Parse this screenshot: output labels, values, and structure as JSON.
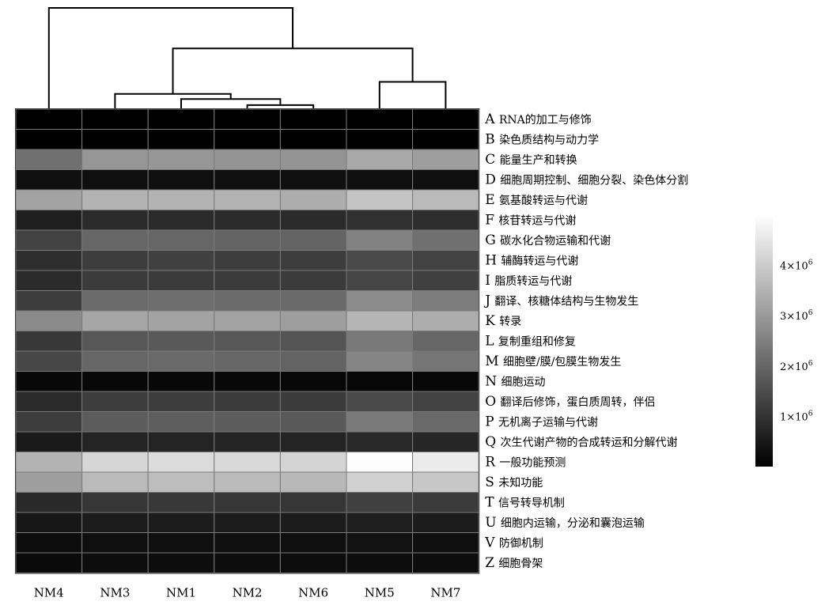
{
  "chart_data": {
    "type": "heatmap",
    "title": "",
    "xlabel": "",
    "ylabel": "",
    "columns": [
      "NM4",
      "NM3",
      "NM1",
      "NM2",
      "NM6",
      "NM5",
      "NM7"
    ],
    "rows": [
      {
        "letter": "A",
        "label": "RNA的加工与修饰"
      },
      {
        "letter": "B",
        "label": "染色质结构与动力学"
      },
      {
        "letter": "C",
        "label": "能量生产和转换"
      },
      {
        "letter": "D",
        "label": "细胞周期控制、细胞分裂、染色体分割"
      },
      {
        "letter": "E",
        "label": "氨基酸转运与代谢"
      },
      {
        "letter": "F",
        "label": "核苷转运与代谢"
      },
      {
        "letter": "G",
        "label": "碳水化合物运输和代谢"
      },
      {
        "letter": "H",
        "label": "辅酶转运与代谢"
      },
      {
        "letter": "I",
        "label": "脂质转运与代谢"
      },
      {
        "letter": "J",
        "label": "翻译、核糖体结构与生物发生"
      },
      {
        "letter": "K",
        "label": "转录"
      },
      {
        "letter": "L",
        "label": "复制重组和修复"
      },
      {
        "letter": "M",
        "label": "细胞壁/膜/包膜生物发生"
      },
      {
        "letter": "N",
        "label": "细胞运动"
      },
      {
        "letter": "O",
        "label": "翻译后修饰，蛋白质周转，伴侣"
      },
      {
        "letter": "P",
        "label": "无机离子运输与代谢"
      },
      {
        "letter": "Q",
        "label": "次生代谢产物的合成转运和分解代谢"
      },
      {
        "letter": "R",
        "label": "一般功能预测"
      },
      {
        "letter": "S",
        "label": "未知功能"
      },
      {
        "letter": "T",
        "label": "信号转导机制"
      },
      {
        "letter": "U",
        "label": "细胞内运输，分泌和囊泡运输"
      },
      {
        "letter": "V",
        "label": "防御机制"
      },
      {
        "letter": "Z",
        "label": "细胞骨架"
      }
    ],
    "values": [
      [
        10000,
        10000,
        10000,
        10000,
        10000,
        10000,
        10000
      ],
      [
        10000,
        10000,
        10000,
        10000,
        10000,
        10000,
        10000
      ],
      [
        2200000,
        2950000,
        2950000,
        2900000,
        2900000,
        3300000,
        3100000
      ],
      [
        300000,
        300000,
        300000,
        300000,
        300000,
        300000,
        300000
      ],
      [
        3200000,
        3500000,
        3500000,
        3500000,
        3400000,
        3850000,
        3650000
      ],
      [
        600000,
        850000,
        850000,
        850000,
        850000,
        950000,
        900000
      ],
      [
        1300000,
        2000000,
        2000000,
        1950000,
        1950000,
        2550000,
        2200000
      ],
      [
        900000,
        1200000,
        1250000,
        1200000,
        1200000,
        1450000,
        1300000
      ],
      [
        850000,
        1150000,
        1150000,
        1150000,
        1150000,
        1350000,
        1250000
      ],
      [
        1200000,
        2100000,
        2150000,
        2100000,
        2050000,
        2750000,
        2450000
      ],
      [
        2700000,
        3250000,
        3200000,
        3200000,
        3100000,
        3550000,
        3400000
      ],
      [
        1100000,
        1700000,
        1750000,
        1700000,
        1650000,
        2350000,
        2000000
      ],
      [
        1400000,
        2000000,
        2050000,
        2000000,
        1950000,
        2600000,
        2300000
      ],
      [
        150000,
        150000,
        150000,
        150000,
        150000,
        150000,
        150000
      ],
      [
        850000,
        1200000,
        1200000,
        1150000,
        1150000,
        1450000,
        1300000
      ],
      [
        1200000,
        1800000,
        1850000,
        1800000,
        1750000,
        2400000,
        2050000
      ],
      [
        500000,
        700000,
        700000,
        700000,
        700000,
        800000,
        750000
      ],
      [
        3500000,
        4200000,
        4300000,
        4250000,
        4150000,
        4950000,
        4600000
      ],
      [
        3100000,
        3650000,
        3700000,
        3650000,
        3600000,
        4100000,
        3900000
      ],
      [
        800000,
        1050000,
        1100000,
        1050000,
        1050000,
        1250000,
        1150000
      ],
      [
        450000,
        550000,
        550000,
        550000,
        550000,
        600000,
        550000
      ],
      [
        250000,
        300000,
        300000,
        300000,
        300000,
        350000,
        300000
      ],
      [
        200000,
        250000,
        250000,
        250000,
        250000,
        250000,
        250000
      ]
    ],
    "colorbar": {
      "min": 0,
      "max": 5000000,
      "ticks": [
        {
          "value": 1000000,
          "mantissa": "1×10",
          "exponent": "6"
        },
        {
          "value": 2000000,
          "mantissa": "2×10",
          "exponent": "6"
        },
        {
          "value": 3000000,
          "mantissa": "3×10",
          "exponent": "6"
        },
        {
          "value": 4000000,
          "mantissa": "4×10",
          "exponent": "6"
        }
      ],
      "colors": [
        "#000000",
        "#ffffff"
      ]
    },
    "dendrogram": {
      "position": "top",
      "leaves": [
        "NM4",
        "NM3",
        "NM1",
        "NM2",
        "NM6",
        "NM5",
        "NM7"
      ],
      "merges": [
        {
          "a": "NM2",
          "b": "NM6",
          "height": 0.04
        },
        {
          "a": "NM1",
          "b": "NM2+NM6",
          "height": 0.1
        },
        {
          "a": "NM3",
          "b": "NM1+NM2+NM6",
          "height": 0.15
        },
        {
          "a": "NM5",
          "b": "NM7",
          "height": 0.27
        },
        {
          "a": "NM3+NM1+NM2+NM6",
          "b": "NM5+NM7",
          "height": 0.6
        },
        {
          "a": "NM4",
          "b": "rest",
          "height": 1.0
        }
      ]
    }
  }
}
